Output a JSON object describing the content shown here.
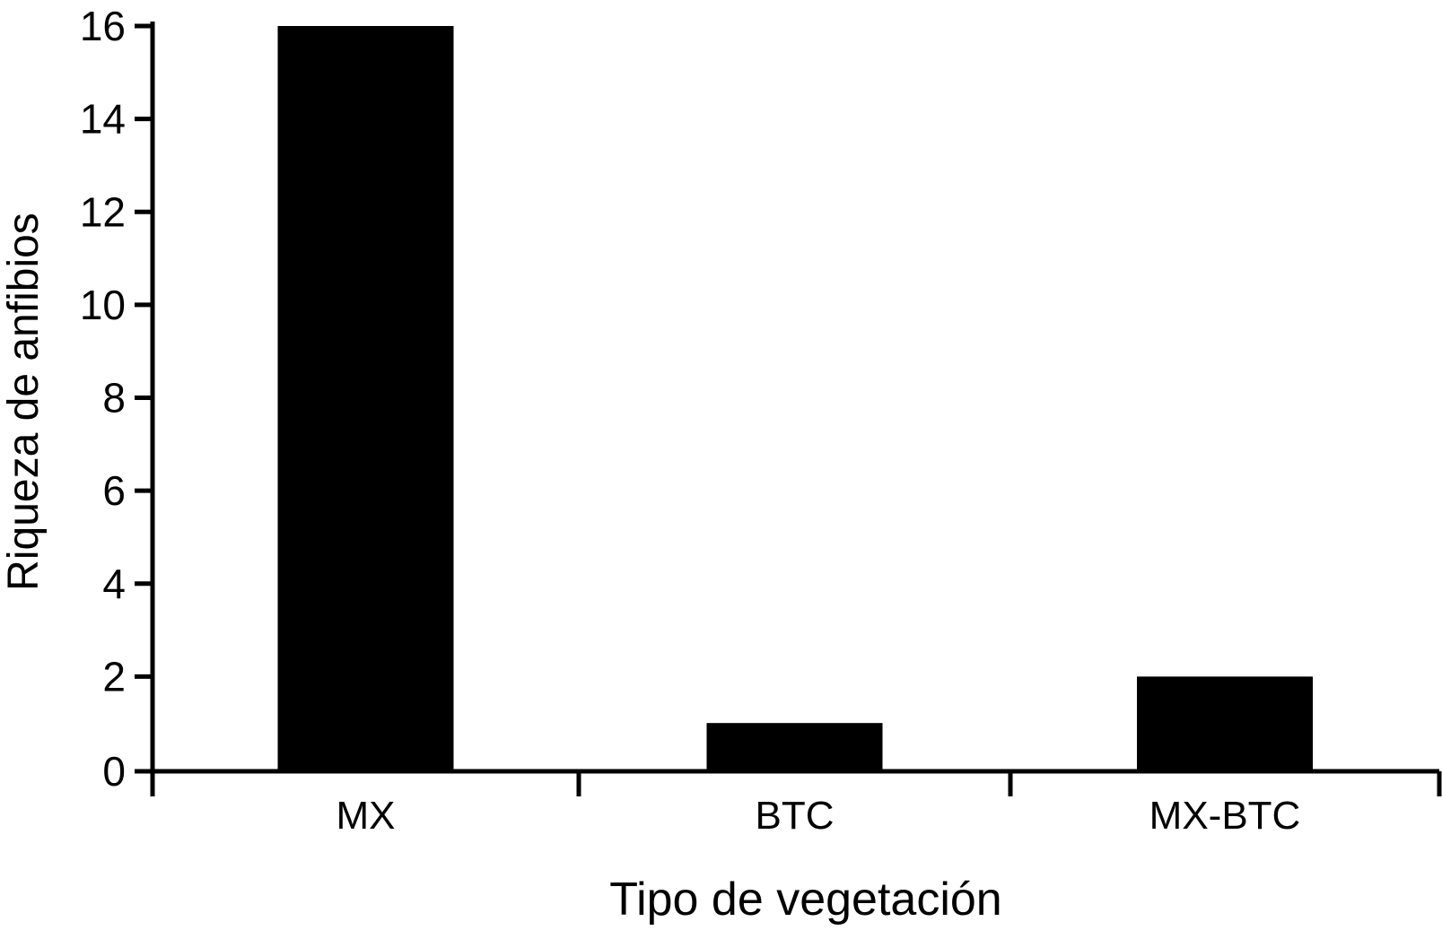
{
  "chart_data": {
    "type": "bar",
    "title": "",
    "xlabel": "Tipo de vegetación",
    "ylabel": "Riqueza de anfibios",
    "categories": [
      "MX",
      "BTC",
      "MX-BTC"
    ],
    "values": [
      16,
      1,
      2
    ],
    "ylim": [
      0,
      16
    ],
    "yticks": [
      0,
      2,
      4,
      6,
      8,
      10,
      12,
      14,
      16
    ],
    "yticks_labels": [
      "0",
      "2",
      "4",
      "6",
      "8",
      "10",
      "12",
      "14",
      "16"
    ],
    "grid": false,
    "legend": "none",
    "colors": {
      "bar": "#000000",
      "axis": "#000000",
      "background": "#ffffff"
    }
  }
}
